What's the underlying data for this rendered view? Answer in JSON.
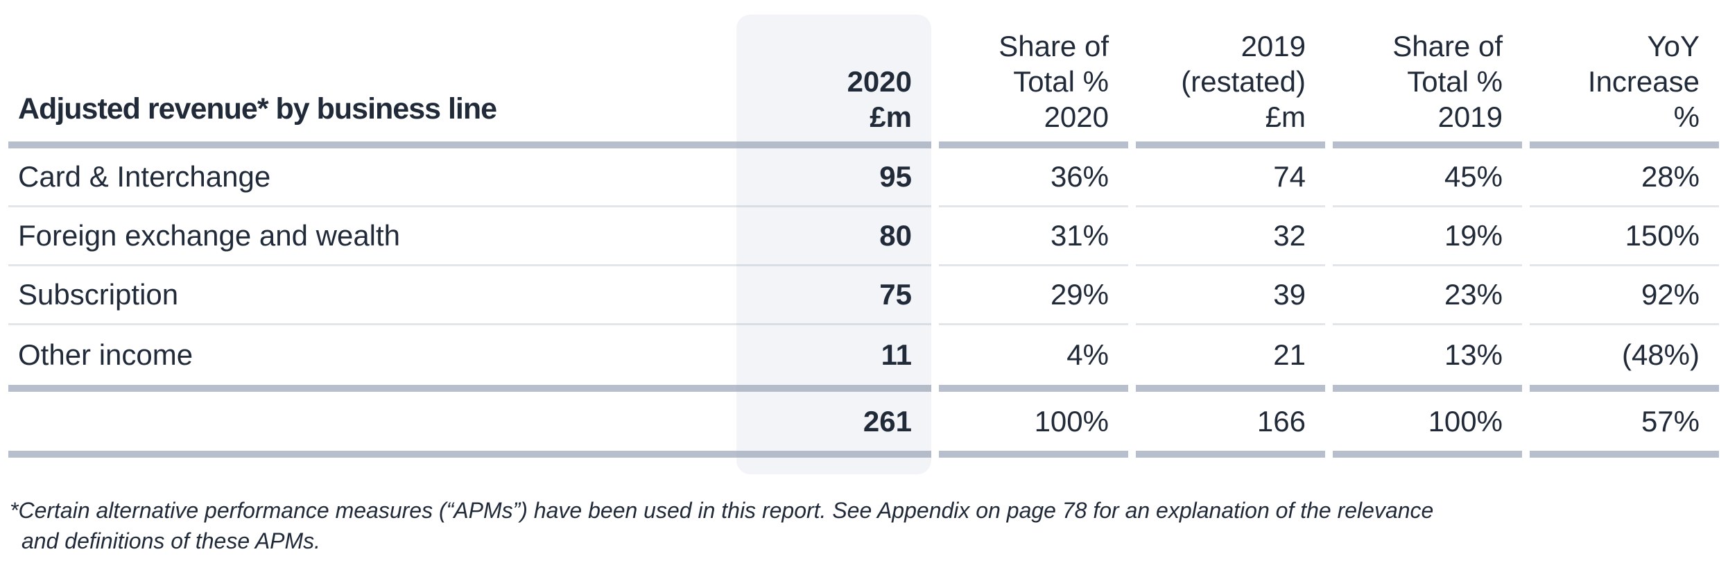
{
  "table": {
    "title": "Adjusted revenue* by business line",
    "columns": [
      {
        "id": "2020-em",
        "lines": [
          "2020",
          "£m"
        ],
        "bold": true,
        "highlighted": true
      },
      {
        "id": "share-total-2020",
        "lines": [
          "Share of",
          "Total %",
          "2020"
        ]
      },
      {
        "id": "2019-restated-em",
        "lines": [
          "2019",
          "(restated)",
          "£m"
        ]
      },
      {
        "id": "share-total-2019",
        "lines": [
          "Share of",
          "Total %",
          "2019"
        ]
      },
      {
        "id": "yoy-increase",
        "lines": [
          "YoY Increase",
          "%"
        ]
      }
    ],
    "rows": [
      {
        "label": "Card & Interchange",
        "values": [
          "95",
          "36%",
          "74",
          "45%",
          "28%"
        ]
      },
      {
        "label": "Foreign exchange and wealth",
        "values": [
          "80",
          "31%",
          "32",
          "19%",
          "150%"
        ]
      },
      {
        "label": "Subscription",
        "values": [
          "75",
          "29%",
          "39",
          "23%",
          "92%"
        ]
      },
      {
        "label": "Other income",
        "values": [
          "11",
          "4%",
          "21",
          "13%",
          "(48%)"
        ]
      }
    ],
    "total": {
      "values": [
        "261",
        "100%",
        "166",
        "100%",
        "57%"
      ]
    }
  },
  "footnote": {
    "lines": [
      "*Certain alternative performance measures (“APMs”) have been used in this report. See Appendix on page 78 for an explanation of the relevance",
      "and definitions of these APMs."
    ]
  },
  "colors": {
    "text": "#212a39",
    "thick_rule": "#bcc3ce",
    "thin_rule": "#e3e6ec",
    "column_highlight": "#f3f4f7",
    "background": "#ffffff"
  }
}
